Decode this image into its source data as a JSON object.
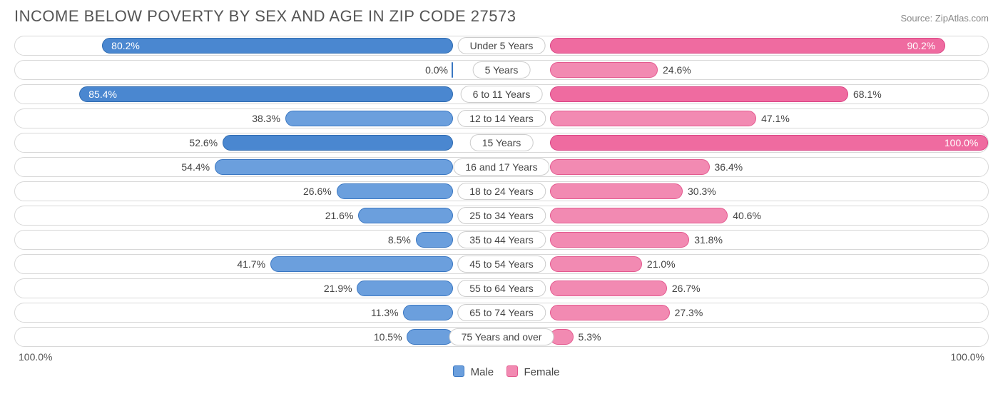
{
  "title": "INCOME BELOW POVERTY BY SEX AND AGE IN ZIP CODE 27573",
  "source": "Source: ZipAtlas.com",
  "colors": {
    "male_fill": "#6b9fdd",
    "male_border": "#3a77c2",
    "female_fill": "#f28ab2",
    "female_border": "#e35a8f",
    "highlight_male_fill": "#4a87d0",
    "highlight_male_border": "#2f6bb0",
    "highlight_female_fill": "#ef6ba0",
    "highlight_female_border": "#d94484",
    "text": "#444444",
    "text_inside": "#ffffff",
    "row_border": "#d8d8d8",
    "background": "#ffffff"
  },
  "legend": {
    "male": "Male",
    "female": "Female"
  },
  "axis": {
    "left": "100.0%",
    "right": "100.0%"
  },
  "label_half_width_pct": 10,
  "inside_threshold": 75,
  "rows": [
    {
      "category": "Under 5 Years",
      "male": 80.2,
      "female": 90.2,
      "highlight": true
    },
    {
      "category": "5 Years",
      "male": 0.0,
      "female": 24.6,
      "highlight": false
    },
    {
      "category": "6 to 11 Years",
      "male": 85.4,
      "female": 68.1,
      "highlight": true
    },
    {
      "category": "12 to 14 Years",
      "male": 38.3,
      "female": 47.1,
      "highlight": false
    },
    {
      "category": "15 Years",
      "male": 52.6,
      "female": 100.0,
      "highlight": true
    },
    {
      "category": "16 and 17 Years",
      "male": 54.4,
      "female": 36.4,
      "highlight": false
    },
    {
      "category": "18 to 24 Years",
      "male": 26.6,
      "female": 30.3,
      "highlight": false
    },
    {
      "category": "25 to 34 Years",
      "male": 21.6,
      "female": 40.6,
      "highlight": false
    },
    {
      "category": "35 to 44 Years",
      "male": 8.5,
      "female": 31.8,
      "highlight": false
    },
    {
      "category": "45 to 54 Years",
      "male": 41.7,
      "female": 21.0,
      "highlight": false
    },
    {
      "category": "55 to 64 Years",
      "male": 21.9,
      "female": 26.7,
      "highlight": false
    },
    {
      "category": "65 to 74 Years",
      "male": 11.3,
      "female": 27.3,
      "highlight": false
    },
    {
      "category": "75 Years and over",
      "male": 10.5,
      "female": 5.3,
      "highlight": false
    }
  ]
}
